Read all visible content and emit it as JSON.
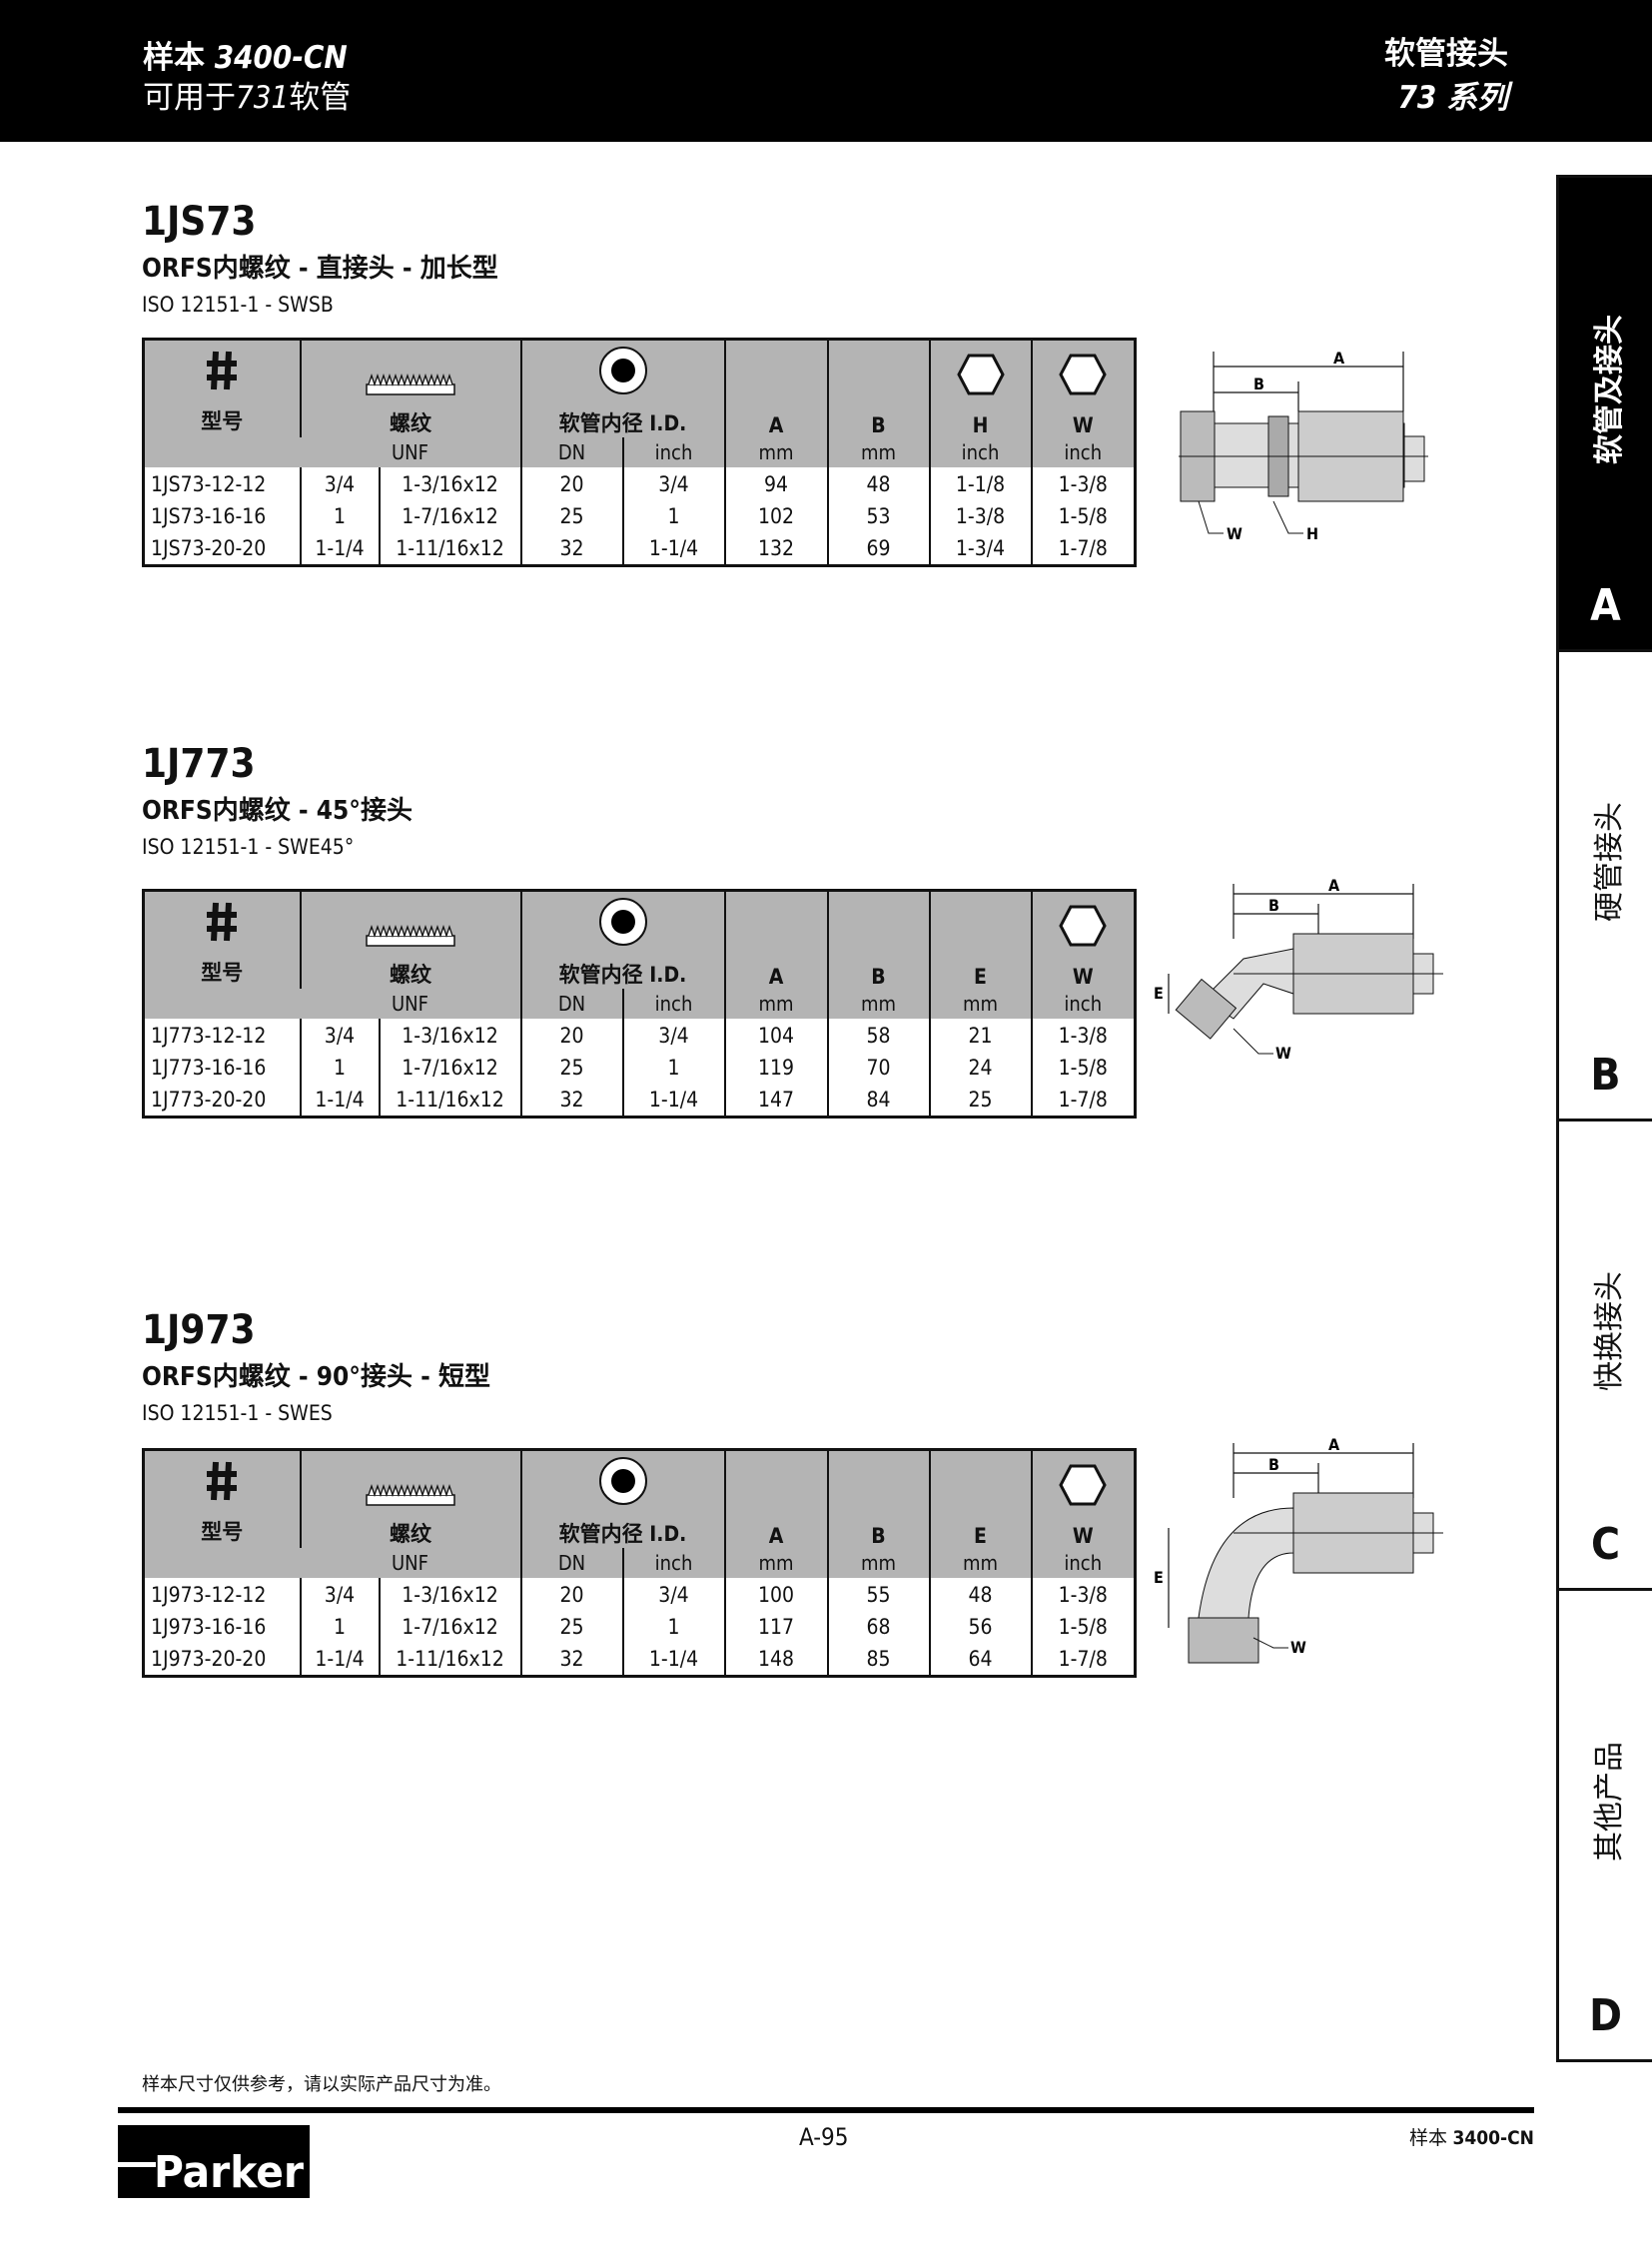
{
  "header": {
    "catalog_label": "样本",
    "catalog_no": "3400-CN",
    "usage_prefix": "可用于",
    "usage_hose": "731",
    "usage_suffix": "软管",
    "category": "软管接头",
    "series_no": "73",
    "series_label": "系列"
  },
  "side_tabs": [
    {
      "label": "软管及接头",
      "key": "A",
      "active": true
    },
    {
      "label": "硬管接头",
      "key": "B",
      "active": false
    },
    {
      "label": "快换接头",
      "key": "C",
      "active": false
    },
    {
      "label": "其他产品",
      "key": "D",
      "active": false
    }
  ],
  "common_headers": {
    "hash": "#",
    "part": "型号",
    "thread": "螺纹",
    "unf": "UNF",
    "hose_id": "软管内径 I.D.",
    "dn": "DN",
    "inch": "inch",
    "mm": "mm"
  },
  "sections": [
    {
      "code": "1JS73",
      "subtitle": "ORFS内螺纹 - 直接头 - 加长型",
      "iso": "ISO 12151-1 - SWSB",
      "cols": [
        {
          "l": "A",
          "u": "mm"
        },
        {
          "l": "B",
          "u": "mm"
        },
        {
          "l": "H",
          "u": "inch"
        },
        {
          "l": "W",
          "u": "inch"
        }
      ],
      "icons": [
        "",
        "",
        "hex-icon",
        "hex-icon"
      ],
      "rows": [
        [
          "1JS73-12-12",
          "3/4",
          "1-3/16x12",
          "20",
          "3/4",
          "94",
          "48",
          "1-1/8",
          "1-3/8"
        ],
        [
          "1JS73-16-16",
          "1",
          "1-7/16x12",
          "25",
          "1",
          "102",
          "53",
          "1-3/8",
          "1-5/8"
        ],
        [
          "1JS73-20-20",
          "1-1/4",
          "1-11/16x12",
          "32",
          "1-1/4",
          "132",
          "69",
          "1-3/4",
          "1-7/8"
        ]
      ],
      "drawing_labels": [
        "A",
        "B",
        "W",
        "H"
      ]
    },
    {
      "code": "1J773",
      "subtitle": "ORFS内螺纹 - 45°接头",
      "iso": "ISO 12151-1 - SWE45°",
      "cols": [
        {
          "l": "A",
          "u": "mm"
        },
        {
          "l": "B",
          "u": "mm"
        },
        {
          "l": "E",
          "u": "mm"
        },
        {
          "l": "W",
          "u": "inch"
        }
      ],
      "icons": [
        "",
        "",
        "",
        "hex-icon"
      ],
      "rows": [
        [
          "1J773-12-12",
          "3/4",
          "1-3/16x12",
          "20",
          "3/4",
          "104",
          "58",
          "21",
          "1-3/8"
        ],
        [
          "1J773-16-16",
          "1",
          "1-7/16x12",
          "25",
          "1",
          "119",
          "70",
          "24",
          "1-5/8"
        ],
        [
          "1J773-20-20",
          "1-1/4",
          "1-11/16x12",
          "32",
          "1-1/4",
          "147",
          "84",
          "25",
          "1-7/8"
        ]
      ],
      "drawing_labels": [
        "A",
        "B",
        "E",
        "W"
      ]
    },
    {
      "code": "1J973",
      "subtitle": "ORFS内螺纹 - 90°接头 - 短型",
      "iso": "ISO 12151-1 - SWES",
      "cols": [
        {
          "l": "A",
          "u": "mm"
        },
        {
          "l": "B",
          "u": "mm"
        },
        {
          "l": "E",
          "u": "mm"
        },
        {
          "l": "W",
          "u": "inch"
        }
      ],
      "icons": [
        "",
        "",
        "",
        "hex-icon"
      ],
      "rows": [
        [
          "1J973-12-12",
          "3/4",
          "1-3/16x12",
          "20",
          "3/4",
          "100",
          "55",
          "48",
          "1-3/8"
        ],
        [
          "1J973-16-16",
          "1",
          "1-7/16x12",
          "25",
          "1",
          "117",
          "68",
          "56",
          "1-5/8"
        ],
        [
          "1J973-20-20",
          "1-1/4",
          "1-11/16x12",
          "32",
          "1-1/4",
          "148",
          "85",
          "64",
          "1-7/8"
        ]
      ],
      "drawing_labels": [
        "A",
        "B",
        "E",
        "W"
      ]
    }
  ],
  "footer": {
    "note": "样本尺寸仅供参考，请以实际产品尺寸为准。",
    "page": "A-95",
    "catalog_label": "样本",
    "catalog_no": "3400-CN",
    "logo": "Parker"
  }
}
